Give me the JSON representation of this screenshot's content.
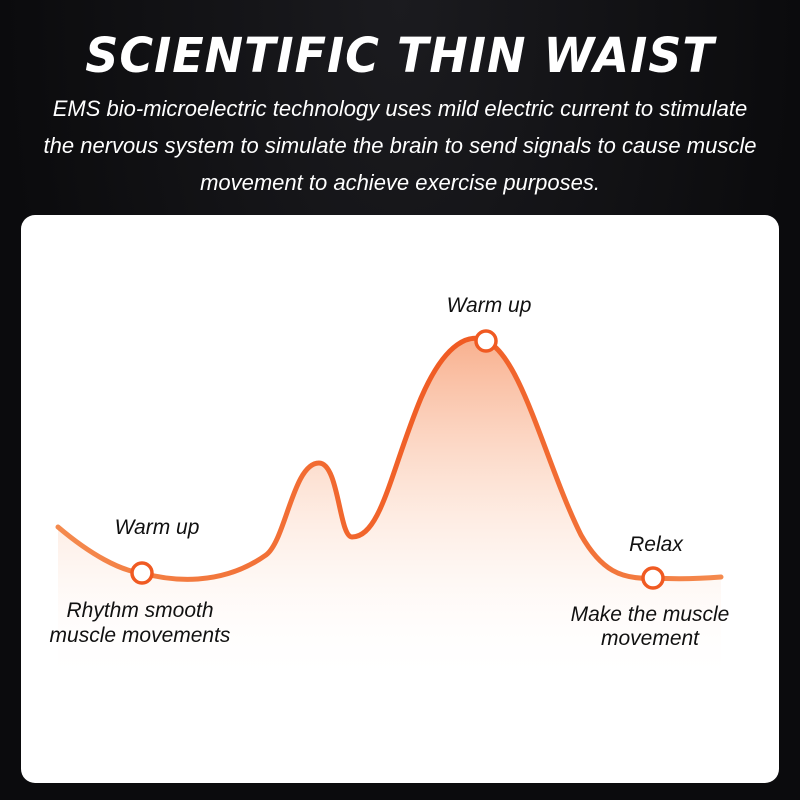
{
  "header": {
    "title": "SCIENTIFIC THIN WAIST",
    "subtitle": "EMS bio-microelectric technology uses mild electric current to stimulate the nervous system to simulate the brain to send signals to cause muscle movement to achieve exercise purposes."
  },
  "diagram": {
    "curve_color": "#f26a2e",
    "fill_color": "#fbd0b4",
    "points": [
      {
        "label": "Warm up",
        "caption_lines": [
          "Rhythm smooth",
          "muscle movements"
        ]
      },
      {
        "label": "Warm up",
        "caption_lines": []
      },
      {
        "label": "Relax",
        "caption_lines": [
          "Make the muscle",
          "movement"
        ]
      }
    ]
  }
}
